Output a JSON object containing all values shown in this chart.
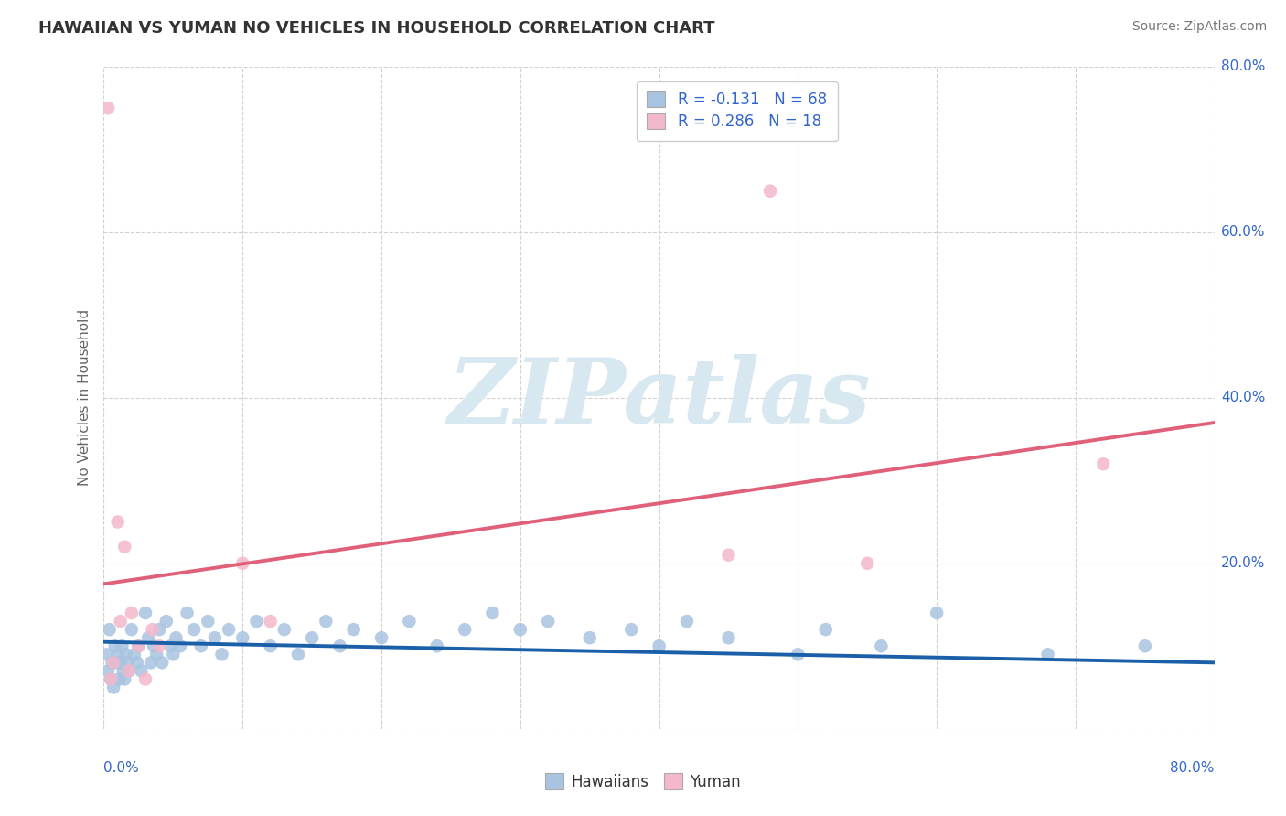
{
  "title": "HAWAIIAN VS YUMAN NO VEHICLES IN HOUSEHOLD CORRELATION CHART",
  "source": "Source: ZipAtlas.com",
  "ylabel": "No Vehicles in Household",
  "ytick_labels": [
    "0.0%",
    "20.0%",
    "40.0%",
    "60.0%",
    "80.0%"
  ],
  "ytick_values": [
    0.0,
    0.2,
    0.4,
    0.6,
    0.8
  ],
  "xlim": [
    0.0,
    0.8
  ],
  "ylim": [
    0.0,
    0.8
  ],
  "hawaiian_R": -0.131,
  "hawaiian_N": 68,
  "yuman_R": 0.286,
  "yuman_N": 18,
  "hawaiian_color": "#a8c4e0",
  "hawaiian_line_color": "#1a5fa8",
  "yuman_color": "#f4b8cb",
  "yuman_line_color": "#e0607a",
  "legend_label_color": "#3366cc",
  "watermark_text": "ZIPatlas",
  "watermark_color": "#d8e8f0",
  "hawaiian_x": [
    0.002,
    0.003,
    0.004,
    0.005,
    0.006,
    0.007,
    0.008,
    0.009,
    0.01,
    0.011,
    0.012,
    0.013,
    0.014,
    0.015,
    0.016,
    0.017,
    0.018,
    0.02,
    0.022,
    0.024,
    0.025,
    0.027,
    0.03,
    0.032,
    0.034,
    0.036,
    0.038,
    0.04,
    0.042,
    0.045,
    0.048,
    0.05,
    0.052,
    0.055,
    0.06,
    0.065,
    0.07,
    0.075,
    0.08,
    0.085,
    0.09,
    0.1,
    0.11,
    0.12,
    0.13,
    0.14,
    0.15,
    0.16,
    0.17,
    0.18,
    0.2,
    0.22,
    0.24,
    0.26,
    0.28,
    0.3,
    0.32,
    0.35,
    0.38,
    0.4,
    0.42,
    0.45,
    0.5,
    0.52,
    0.56,
    0.6,
    0.68,
    0.75
  ],
  "hawaiian_y": [
    0.09,
    0.07,
    0.12,
    0.06,
    0.08,
    0.05,
    0.1,
    0.08,
    0.09,
    0.06,
    0.08,
    0.1,
    0.07,
    0.06,
    0.09,
    0.08,
    0.07,
    0.12,
    0.09,
    0.08,
    0.1,
    0.07,
    0.14,
    0.11,
    0.08,
    0.1,
    0.09,
    0.12,
    0.08,
    0.13,
    0.1,
    0.09,
    0.11,
    0.1,
    0.14,
    0.12,
    0.1,
    0.13,
    0.11,
    0.09,
    0.12,
    0.11,
    0.13,
    0.1,
    0.12,
    0.09,
    0.11,
    0.13,
    0.1,
    0.12,
    0.11,
    0.13,
    0.1,
    0.12,
    0.14,
    0.12,
    0.13,
    0.11,
    0.12,
    0.1,
    0.13,
    0.11,
    0.09,
    0.12,
    0.1,
    0.14,
    0.09,
    0.1
  ],
  "yuman_x": [
    0.003,
    0.005,
    0.007,
    0.01,
    0.012,
    0.015,
    0.018,
    0.02,
    0.025,
    0.03,
    0.035,
    0.04,
    0.1,
    0.12,
    0.45,
    0.48,
    0.55,
    0.72
  ],
  "yuman_y": [
    0.75,
    0.06,
    0.08,
    0.25,
    0.13,
    0.22,
    0.07,
    0.14,
    0.1,
    0.06,
    0.12,
    0.1,
    0.2,
    0.13,
    0.21,
    0.65,
    0.2,
    0.32
  ],
  "hawaiian_trend_x0": 0.0,
  "hawaiian_trend_y0": 0.105,
  "hawaiian_trend_x1": 0.8,
  "hawaiian_trend_y1": 0.08,
  "yuman_trend_x0": 0.0,
  "yuman_trend_y0": 0.175,
  "yuman_trend_x1": 0.8,
  "yuman_trend_y1": 0.37
}
